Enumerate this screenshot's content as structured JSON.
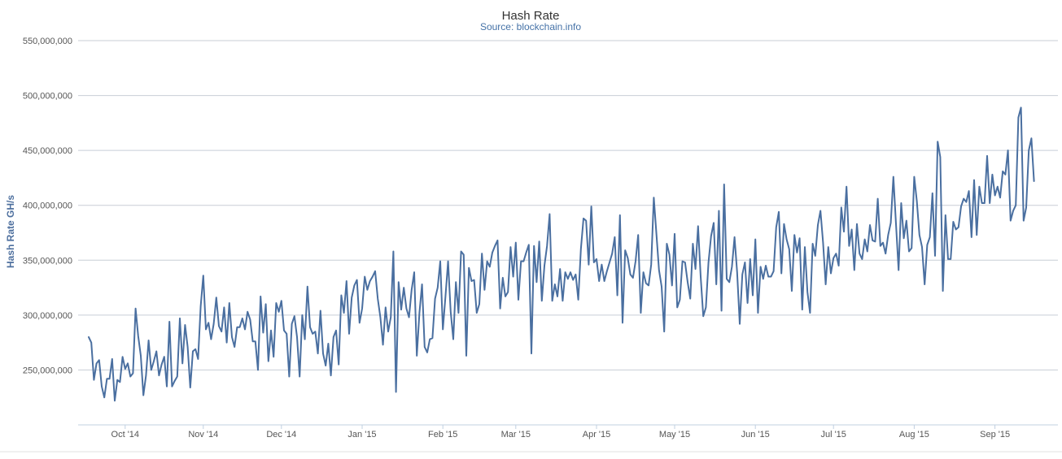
{
  "chart_data": {
    "type": "line",
    "title": "Hash Rate",
    "subtitle": "Source: blockchain.info",
    "xlabel": "",
    "ylabel": "Hash Rate GH/s",
    "ylim": [
      200000000,
      550000000
    ],
    "yticks": [
      250000000,
      300000000,
      350000000,
      400000000,
      450000000,
      500000000,
      550000000
    ],
    "ytick_labels": [
      "250,000,000",
      "300,000,000",
      "350,000,000",
      "400,000,000",
      "450,000,000",
      "500,000,000",
      "550,000,000"
    ],
    "xticks": [
      {
        "label": "Oct '14",
        "day": 14
      },
      {
        "label": "Nov '14",
        "day": 44
      },
      {
        "label": "Dec '14",
        "day": 74
      },
      {
        "label": "Jan '15",
        "day": 105
      },
      {
        "label": "Feb '15",
        "day": 136
      },
      {
        "label": "Mar '15",
        "day": 164
      },
      {
        "label": "Apr '15",
        "day": 195
      },
      {
        "label": "May '15",
        "day": 225
      },
      {
        "label": "Jun '15",
        "day": 256
      },
      {
        "label": "Jul '15",
        "day": 286
      },
      {
        "label": "Aug '15",
        "day": 317
      },
      {
        "label": "Sep '15",
        "day": 348
      }
    ],
    "start_date": "2014-09-17",
    "grid": true,
    "series": [
      {
        "name": "Hash Rate",
        "x_start_day": 0,
        "values": [
          280000000,
          275000000,
          241000000,
          256000000,
          259000000,
          235000000,
          225000000,
          242000000,
          242000000,
          260000000,
          222000000,
          241000000,
          239000000,
          262000000,
          251000000,
          256000000,
          244000000,
          247000000,
          306000000,
          281000000,
          263000000,
          227000000,
          245000000,
          277000000,
          250000000,
          258000000,
          267000000,
          245000000,
          255000000,
          262000000,
          235000000,
          294000000,
          235000000,
          240000000,
          244000000,
          297000000,
          256000000,
          291000000,
          271000000,
          234000000,
          267000000,
          269000000,
          260000000,
          308000000,
          336000000,
          287000000,
          293000000,
          278000000,
          292000000,
          316000000,
          290000000,
          285000000,
          307000000,
          275000000,
          311000000,
          280000000,
          271000000,
          289000000,
          289000000,
          297000000,
          287000000,
          303000000,
          296000000,
          276000000,
          276000000,
          250000000,
          317000000,
          284000000,
          310000000,
          258000000,
          286000000,
          262000000,
          311000000,
          303000000,
          313000000,
          286000000,
          283000000,
          244000000,
          292000000,
          299000000,
          280000000,
          244000000,
          300000000,
          278000000,
          326000000,
          289000000,
          283000000,
          285000000,
          265000000,
          304000000,
          265000000,
          254000000,
          274000000,
          245000000,
          280000000,
          286000000,
          255000000,
          318000000,
          302000000,
          331000000,
          283000000,
          316000000,
          327000000,
          332000000,
          293000000,
          306000000,
          335000000,
          323000000,
          331000000,
          335000000,
          340000000,
          315000000,
          298000000,
          273000000,
          307000000,
          285000000,
          298000000,
          358000000,
          230000000,
          330000000,
          305000000,
          325000000,
          306000000,
          298000000,
          323000000,
          339000000,
          263000000,
          302000000,
          328000000,
          271000000,
          266000000,
          278000000,
          279000000,
          315000000,
          325000000,
          349000000,
          287000000,
          317000000,
          349000000,
          303000000,
          278000000,
          330000000,
          302000000,
          358000000,
          355000000,
          263000000,
          343000000,
          331000000,
          332000000,
          302000000,
          310000000,
          356000000,
          323000000,
          349000000,
          344000000,
          357000000,
          363000000,
          368000000,
          306000000,
          334000000,
          317000000,
          321000000,
          362000000,
          335000000,
          366000000,
          314000000,
          349000000,
          349000000,
          357000000,
          364000000,
          265000000,
          363000000,
          330000000,
          367000000,
          313000000,
          345000000,
          363000000,
          392000000,
          313000000,
          328000000,
          317000000,
          342000000,
          313000000,
          339000000,
          333000000,
          339000000,
          332000000,
          337000000,
          314000000,
          360000000,
          388000000,
          386000000,
          346000000,
          399000000,
          348000000,
          351000000,
          331000000,
          346000000,
          331000000,
          340000000,
          348000000,
          356000000,
          371000000,
          318000000,
          391000000,
          293000000,
          359000000,
          352000000,
          337000000,
          334000000,
          349000000,
          373000000,
          302000000,
          339000000,
          329000000,
          327000000,
          346000000,
          407000000,
          374000000,
          341000000,
          326000000,
          285000000,
          365000000,
          355000000,
          327000000,
          374000000,
          307000000,
          314000000,
          349000000,
          348000000,
          330000000,
          315000000,
          365000000,
          342000000,
          381000000,
          335000000,
          299000000,
          307000000,
          348000000,
          372000000,
          384000000,
          328000000,
          395000000,
          304000000,
          419000000,
          333000000,
          330000000,
          344000000,
          371000000,
          339000000,
          292000000,
          337000000,
          348000000,
          311000000,
          351000000,
          318000000,
          369000000,
          302000000,
          344000000,
          333000000,
          345000000,
          335000000,
          335000000,
          340000000,
          380000000,
          394000000,
          338000000,
          383000000,
          369000000,
          360000000,
          322000000,
          373000000,
          357000000,
          370000000,
          305000000,
          362000000,
          321000000,
          302000000,
          365000000,
          354000000,
          382000000,
          395000000,
          366000000,
          328000000,
          362000000,
          338000000,
          352000000,
          356000000,
          345000000,
          398000000,
          376000000,
          417000000,
          363000000,
          378000000,
          341000000,
          383000000,
          356000000,
          351000000,
          369000000,
          358000000,
          382000000,
          368000000,
          367000000,
          406000000,
          363000000,
          366000000,
          356000000,
          373000000,
          384000000,
          426000000,
          383000000,
          341000000,
          402000000,
          370000000,
          386000000,
          358000000,
          361000000,
          426000000,
          404000000,
          373000000,
          362000000,
          328000000,
          364000000,
          371000000,
          411000000,
          354000000,
          458000000,
          444000000,
          322000000,
          391000000,
          351000000,
          351000000,
          385000000,
          378000000,
          380000000,
          399000000,
          406000000,
          403000000,
          413000000,
          371000000,
          423000000,
          373000000,
          417000000,
          402000000,
          402000000,
          445000000,
          402000000,
          428000000,
          409000000,
          417000000,
          407000000,
          431000000,
          428000000,
          450000000,
          386000000,
          395000000,
          400000000,
          480000000,
          489000000,
          386000000,
          398000000,
          450000000,
          461000000,
          422000000
        ]
      }
    ]
  },
  "colors": {
    "series": "#4a6fa0",
    "title": "#333333",
    "subtitle": "#4572a7",
    "ylabel": "#4d6f9e"
  }
}
